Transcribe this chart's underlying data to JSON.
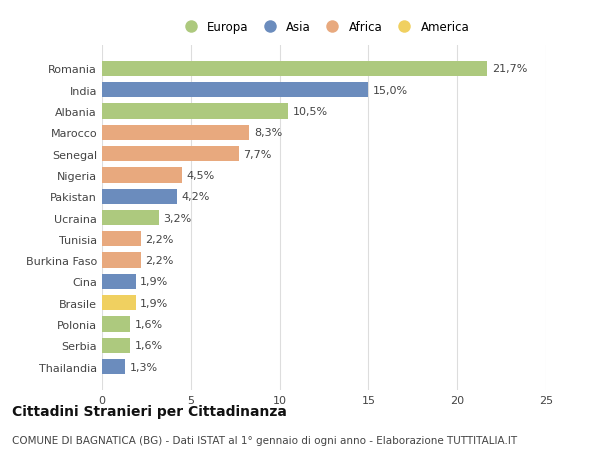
{
  "categories": [
    "Romania",
    "India",
    "Albania",
    "Marocco",
    "Senegal",
    "Nigeria",
    "Pakistan",
    "Ucraina",
    "Tunisia",
    "Burkina Faso",
    "Cina",
    "Brasile",
    "Polonia",
    "Serbia",
    "Thailandia"
  ],
  "values": [
    21.7,
    15.0,
    10.5,
    8.3,
    7.7,
    4.5,
    4.2,
    3.2,
    2.2,
    2.2,
    1.9,
    1.9,
    1.6,
    1.6,
    1.3
  ],
  "continents": [
    "Europa",
    "Asia",
    "Europa",
    "Africa",
    "Africa",
    "Africa",
    "Asia",
    "Europa",
    "Africa",
    "Africa",
    "Asia",
    "America",
    "Europa",
    "Europa",
    "Asia"
  ],
  "colors": {
    "Europa": "#adc97e",
    "Asia": "#6b8cbd",
    "Africa": "#e8a97e",
    "America": "#f0d060"
  },
  "legend_order": [
    "Europa",
    "Asia",
    "Africa",
    "America"
  ],
  "xlim": [
    0,
    25
  ],
  "title": "Cittadini Stranieri per Cittadinanza",
  "subtitle": "COMUNE DI BAGNATICA (BG) - Dati ISTAT al 1° gennaio di ogni anno - Elaborazione TUTTITALIA.IT",
  "bg_color": "#ffffff",
  "grid_color": "#dddddd",
  "title_fontsize": 10,
  "subtitle_fontsize": 7.5,
  "label_fontsize": 8,
  "tick_fontsize": 8
}
